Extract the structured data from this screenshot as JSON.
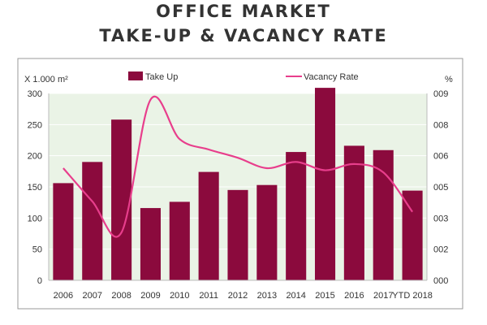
{
  "header": {
    "title_line1": "OFFICE MARKET",
    "title_line2": "TAKE-UP & VACANCY RATE"
  },
  "colors": {
    "bar": "#8b0a3d",
    "line": "#e83e8c",
    "plot_bg": "#eaf3e6",
    "grid": "#ffffff",
    "frame": "#999999"
  },
  "chart_data": {
    "type": "bar",
    "categories": [
      "2006",
      "2007",
      "2008",
      "2009",
      "2010",
      "2011",
      "2012",
      "2013",
      "2014",
      "2015",
      "2016",
      "2017",
      "YTD 2018"
    ],
    "ylabel": "X 1.000 m²",
    "y2label": "%",
    "ylim": [
      0,
      300
    ],
    "yticks": [
      0,
      50,
      100,
      150,
      200,
      250,
      300
    ],
    "y2lim": [
      0,
      9
    ],
    "y2ticks": [
      "000",
      "002",
      "003",
      "005",
      "006",
      "008",
      "009"
    ],
    "legend_placement": "top",
    "grid": true,
    "series": [
      {
        "name": "Take Up",
        "type": "bar",
        "axis": "left",
        "values": [
          156,
          190,
          258,
          116,
          126,
          174,
          145,
          153,
          206,
          309,
          216,
          209,
          144
        ]
      },
      {
        "name": "Vacancy Rate",
        "type": "line",
        "axis": "right",
        "values": [
          5.4,
          3.8,
          2.3,
          8.7,
          6.8,
          6.3,
          5.9,
          5.4,
          5.7,
          5.3,
          5.6,
          5.2,
          3.3
        ]
      }
    ]
  }
}
